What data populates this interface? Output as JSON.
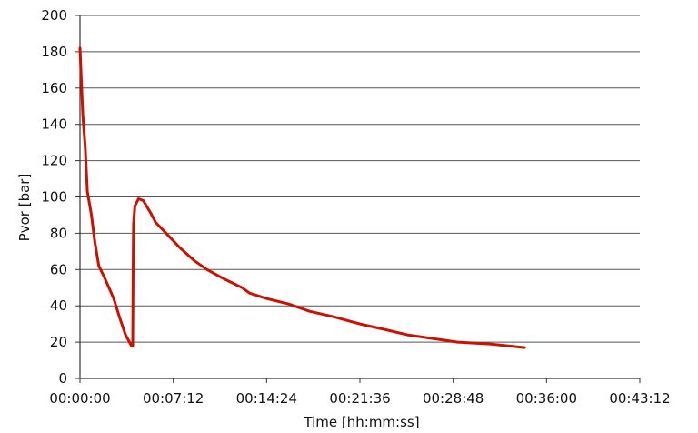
{
  "chart_data": {
    "type": "line",
    "title": "",
    "xlabel": "Time [hh:mm:ss]",
    "ylabel": "Pvor [bar]",
    "xlim": [
      "00:00:00",
      "00:43:12"
    ],
    "ylim": [
      0,
      200
    ],
    "x_ticks": [
      "00:00:00",
      "00:07:12",
      "00:14:24",
      "00:21:36",
      "00:28:48",
      "00:36:00",
      "00:43:12"
    ],
    "y_ticks": [
      0,
      20,
      40,
      60,
      80,
      100,
      120,
      140,
      160,
      180,
      200
    ],
    "grid": "horizontal",
    "legend": "none",
    "series": [
      {
        "color": "#cc1100",
        "points": [
          {
            "x": "00:00:00",
            "y": 182
          },
          {
            "x": "00:00:06",
            "y": 165
          },
          {
            "x": "00:00:13",
            "y": 145
          },
          {
            "x": "00:00:24",
            "y": 128
          },
          {
            "x": "00:00:34",
            "y": 103
          },
          {
            "x": "00:00:53",
            "y": 90
          },
          {
            "x": "00:01:09",
            "y": 75
          },
          {
            "x": "00:01:27",
            "y": 62
          },
          {
            "x": "00:01:52",
            "y": 56
          },
          {
            "x": "00:02:36",
            "y": 44
          },
          {
            "x": "00:03:05",
            "y": 33
          },
          {
            "x": "00:03:31",
            "y": 24
          },
          {
            "x": "00:03:58",
            "y": 18
          },
          {
            "x": "00:04:04",
            "y": 18
          },
          {
            "x": "00:04:06",
            "y": 60
          },
          {
            "x": "00:04:08",
            "y": 85
          },
          {
            "x": "00:04:14",
            "y": 95
          },
          {
            "x": "00:04:31",
            "y": 99
          },
          {
            "x": "00:04:53",
            "y": 98
          },
          {
            "x": "00:05:28",
            "y": 91
          },
          {
            "x": "00:05:50",
            "y": 86
          },
          {
            "x": "00:06:31",
            "y": 81
          },
          {
            "x": "00:07:43",
            "y": 72
          },
          {
            "x": "00:08:48",
            "y": 65
          },
          {
            "x": "00:09:48",
            "y": 60
          },
          {
            "x": "00:11:05",
            "y": 55
          },
          {
            "x": "00:12:31",
            "y": 50
          },
          {
            "x": "00:13:05",
            "y": 47
          },
          {
            "x": "00:14:24",
            "y": 44
          },
          {
            "x": "00:16:07",
            "y": 41
          },
          {
            "x": "00:17:43",
            "y": 37
          },
          {
            "x": "00:19:34",
            "y": 34
          },
          {
            "x": "00:21:36",
            "y": 30
          },
          {
            "x": "00:23:29",
            "y": 27
          },
          {
            "x": "00:25:16",
            "y": 24
          },
          {
            "x": "00:27:12",
            "y": 22
          },
          {
            "x": "00:29:08",
            "y": 20
          },
          {
            "x": "00:31:38",
            "y": 19
          },
          {
            "x": "00:34:18",
            "y": 17
          }
        ]
      }
    ]
  }
}
